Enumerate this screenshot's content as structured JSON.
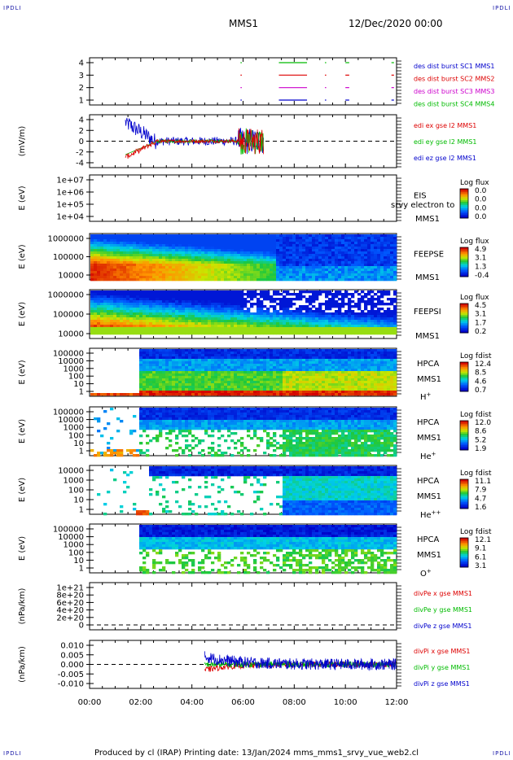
{
  "header": {
    "corner_label": "IPDLI",
    "spacecraft": "MMS1",
    "datetime": "12/Dec/2020 00:00"
  },
  "footer": {
    "text": "Produced by cl (IRAP)   Printing date: 13/Jan/2024   mms_mms1_srvy_vue_web2.cl"
  },
  "colors": {
    "blue": "#0000cc",
    "red": "#dd0000",
    "green": "#00bb00",
    "magenta": "#cc00cc",
    "black": "#000000"
  },
  "x_axis": {
    "ticks": [
      "00:00",
      "02:00",
      "04:00",
      "06:00",
      "08:00",
      "10:00",
      "12:00"
    ],
    "range_hours": [
      0,
      12
    ]
  },
  "chart_data": [
    {
      "id": "burst",
      "type": "line",
      "yticks": [
        "4",
        "3",
        "2",
        "1"
      ],
      "ylim": [
        0.5,
        4.5
      ],
      "series": [
        {
          "name": "des dist burst SC1 MMS1",
          "color": "blue",
          "level": 1,
          "segments": [
            [
              5.9,
              5.95
            ],
            [
              7.4,
              8.5
            ],
            [
              9.2,
              9.25
            ],
            [
              10.0,
              10.15
            ],
            [
              11.8,
              11.9
            ]
          ]
        },
        {
          "name": "des dist burst SC2 MMS2",
          "color": "red",
          "level": 3,
          "segments": [
            [
              5.9,
              5.95
            ],
            [
              7.4,
              8.5
            ],
            [
              9.2,
              9.25
            ],
            [
              10.0,
              10.15
            ],
            [
              11.8,
              11.9
            ]
          ]
        },
        {
          "name": "des dist burst SC3 MMS3",
          "color": "magenta",
          "level": 2,
          "segments": [
            [
              5.9,
              5.95
            ],
            [
              7.4,
              8.5
            ],
            [
              9.2,
              9.25
            ],
            [
              10.0,
              10.15
            ],
            [
              11.8,
              11.9
            ]
          ]
        },
        {
          "name": "des dist burst SC4 MMS4",
          "color": "green",
          "level": 4,
          "segments": [
            [
              5.9,
              5.95
            ],
            [
              7.4,
              8.5
            ],
            [
              9.2,
              9.25
            ],
            [
              10.0,
              10.15
            ],
            [
              11.8,
              11.9
            ]
          ]
        }
      ]
    },
    {
      "id": "efield",
      "type": "line",
      "ylabel": "(mV/m)",
      "yticks": [
        "4",
        "2",
        "0",
        "-2",
        "-4"
      ],
      "ylim": [
        -4.5,
        4.5
      ],
      "series": [
        {
          "name": "edi ex gse l2 MMS1",
          "color": "red"
        },
        {
          "name": "edi ey gse l2 MMS1",
          "color": "green"
        },
        {
          "name": "edi ez gse l2 MMS1",
          "color": "blue"
        }
      ]
    },
    {
      "id": "eis",
      "type": "heatmap",
      "ylabel": "E (eV)",
      "yticks": [
        "1e+07",
        "1e+06",
        "1e+05",
        "1e+04"
      ],
      "instrument": [
        "EIS",
        "MMS1"
      ],
      "overlay": "srvy electron to",
      "cbar_title": "Log flux",
      "cbar_ticks": [
        "0.0",
        "0.0",
        "0.0",
        "0.0"
      ]
    },
    {
      "id": "feepse",
      "type": "heatmap",
      "ylabel": "E (eV)",
      "yticks": [
        "1000000",
        "100000",
        "10000"
      ],
      "instrument": [
        "FEEPSE",
        "MMS1"
      ],
      "cbar_title": "Log flux",
      "cbar_ticks": [
        "4.9",
        "3.1",
        "1.3",
        "-0.4"
      ]
    },
    {
      "id": "feepsi",
      "type": "heatmap",
      "ylabel": "E (eV)",
      "yticks": [
        "1000000",
        "100000",
        "10000"
      ],
      "instrument": [
        "FEEPSI",
        "MMS1"
      ],
      "cbar_title": "Log flux",
      "cbar_ticks": [
        "4.5",
        "3.1",
        "1.7",
        "0.2"
      ]
    },
    {
      "id": "hpca_h",
      "type": "heatmap",
      "ylabel": "E (eV)",
      "yticks": [
        "100000",
        "10000",
        "1000",
        "100",
        "10",
        "1"
      ],
      "instrument": [
        "HPCA",
        "MMS1",
        "H+"
      ],
      "cbar_title": "Log fdist",
      "cbar_ticks": [
        "12.4",
        "8.5",
        "4.6",
        "0.7"
      ]
    },
    {
      "id": "hpca_he",
      "type": "heatmap",
      "ylabel": "E (eV)",
      "yticks": [
        "100000",
        "10000",
        "1000",
        "100",
        "10",
        "1"
      ],
      "instrument": [
        "HPCA",
        "MMS1",
        "He+"
      ],
      "cbar_title": "Log fdist",
      "cbar_ticks": [
        "12.0",
        "8.6",
        "5.2",
        "1.9"
      ]
    },
    {
      "id": "hpca_hepp",
      "type": "heatmap",
      "ylabel": "E (eV)",
      "yticks": [
        "10000",
        "1000",
        "100",
        "10",
        "1"
      ],
      "instrument": [
        "HPCA",
        "MMS1",
        "He++"
      ],
      "cbar_title": "Log fdist",
      "cbar_ticks": [
        "11.1",
        "7.9",
        "4.7",
        "1.6"
      ]
    },
    {
      "id": "hpca_o",
      "type": "heatmap",
      "ylabel": "E (eV)",
      "yticks": [
        "100000",
        "10000",
        "1000",
        "100",
        "10",
        "1"
      ],
      "instrument": [
        "HPCA",
        "MMS1",
        "O+"
      ],
      "cbar_title": "Log fdist",
      "cbar_ticks": [
        "12.1",
        "9.1",
        "6.1",
        "3.1"
      ]
    },
    {
      "id": "divpe",
      "type": "line",
      "ylabel": "(nPa/km)",
      "yticks": [
        "1e+21",
        "8e+20",
        "6e+20",
        "4e+20",
        "2e+20",
        "0"
      ],
      "ylim": [
        -5e+19,
        1.1e+21
      ],
      "series": [
        {
          "name": "divPe x gse MMS1",
          "color": "red"
        },
        {
          "name": "divPe y gse MMS1",
          "color": "green"
        },
        {
          "name": "divPe z gse MMS1",
          "color": "blue"
        }
      ]
    },
    {
      "id": "divpi",
      "type": "line",
      "ylabel": "(nPa/km)",
      "yticks": [
        "0.010",
        "0.005",
        "0.000",
        "-0.005",
        "-0.010"
      ],
      "ylim": [
        -0.012,
        0.012
      ],
      "series": [
        {
          "name": "divPi x gse MMS1",
          "color": "red"
        },
        {
          "name": "divPi y gse MMS1",
          "color": "green"
        },
        {
          "name": "divPi z gse MMS1",
          "color": "blue"
        }
      ]
    }
  ]
}
